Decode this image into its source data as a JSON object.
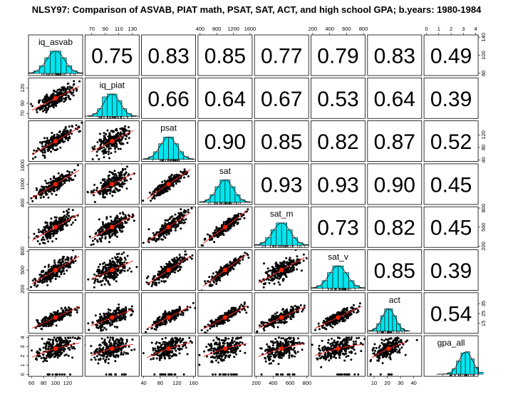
{
  "title": "NLSY97: Comparison of ASVAB, PIAT math, PSAT, SAT, ACT, and high school GPA; b.years: 1980-1984",
  "chart_data": {
    "type": "scatter-matrix",
    "variables": [
      "iq_asvab",
      "iq_piat",
      "psat",
      "sat",
      "sat_m",
      "sat_v",
      "act",
      "gpa_all"
    ],
    "variable_labels": [
      "iq_asvab",
      "iq_piat",
      "psat",
      "sat",
      "sat_m",
      "sat_v",
      "act",
      "gpa_all"
    ],
    "ranges": {
      "iq_asvab": [
        55,
        145
      ],
      "iq_piat": [
        60,
        140
      ],
      "psat": [
        35,
        165
      ],
      "sat": [
        350,
        1650
      ],
      "sat_m": [
        180,
        820
      ],
      "sat_v": [
        180,
        820
      ],
      "act": [
        5,
        46
      ],
      "gpa_all": [
        -0.2,
        4.2
      ]
    },
    "means": {
      "iq_asvab": 100,
      "iq_piat": 100,
      "psat": 100,
      "sat": 1000,
      "sat_m": 500,
      "sat_v": 500,
      "act": 21,
      "gpa_all": 2.8
    },
    "sds": {
      "iq_asvab": 15,
      "iq_piat": 12,
      "psat": 20,
      "sat": 200,
      "sat_m": 105,
      "sat_v": 105,
      "act": 5,
      "gpa_all": 0.6
    },
    "correlation_labels": {
      "0-1": "0.75",
      "0-2": "0.83",
      "0-3": "0.85",
      "0-4": "0.77",
      "0-5": "0.79",
      "0-6": "0.83",
      "0-7": "0.49",
      "1-2": "0.66",
      "1-3": "0.64",
      "1-4": "0.67",
      "1-5": "0.53",
      "1-6": "0.64",
      "1-7": "0.39",
      "2-3": "0.90",
      "2-4": "0.85",
      "2-5": "0.82",
      "2-6": "0.87",
      "2-7": "0.52",
      "3-4": "0.93",
      "3-5": "0.93",
      "3-6": "0.90",
      "3-7": "0.45",
      "4-5": "0.73",
      "4-6": "0.82",
      "4-7": "0.45",
      "5-6": "0.85",
      "5-7": "0.39",
      "6-7": "0.54"
    },
    "axis_ticks": {
      "top": [
        {
          "col": 1,
          "ticks": [
            70,
            90,
            110,
            130
          ]
        },
        {
          "col": 3,
          "ticks": [
            400,
            800,
            1200,
            1600
          ]
        },
        {
          "col": 5,
          "ticks": [
            200,
            400,
            600,
            800
          ]
        },
        {
          "col": 7,
          "ticks": [
            0,
            1,
            2,
            3,
            4
          ]
        }
      ],
      "bottom": [
        {
          "col": 0,
          "ticks": [
            60,
            80,
            100,
            120
          ]
        },
        {
          "col": 2,
          "ticks": [
            40,
            80,
            120,
            160
          ]
        },
        {
          "col": 4,
          "ticks": [
            200,
            400,
            600,
            800
          ]
        },
        {
          "col": 6,
          "ticks": [
            10,
            20,
            30,
            40
          ]
        }
      ],
      "left": [
        {
          "row": 1,
          "ticks": [
            70,
            90,
            120
          ]
        },
        {
          "row": 3,
          "ticks": [
            400,
            1000,
            1600
          ]
        },
        {
          "row": 5,
          "ticks": [
            200,
            500,
            800
          ]
        },
        {
          "row": 7,
          "ticks": [
            0,
            1,
            2,
            3,
            4
          ]
        }
      ],
      "right": [
        {
          "row": 0,
          "ticks": [
            60,
            100,
            140
          ]
        },
        {
          "row": 2,
          "ticks": [
            40,
            80,
            120
          ]
        },
        {
          "row": 4,
          "ticks": [
            200,
            500,
            800
          ]
        },
        {
          "row": 6,
          "ticks": [
            15,
            25,
            35
          ]
        }
      ]
    },
    "diagonal": "histogram with density curve and rug",
    "lower_panels": "scatter with loess smooth and mean point",
    "upper_panels": "correlation coefficient",
    "colors": {
      "hist_fill": "#00E5EE",
      "points": "#000000",
      "smooth": "#ff2222",
      "mean_point": "#ee2200"
    }
  }
}
